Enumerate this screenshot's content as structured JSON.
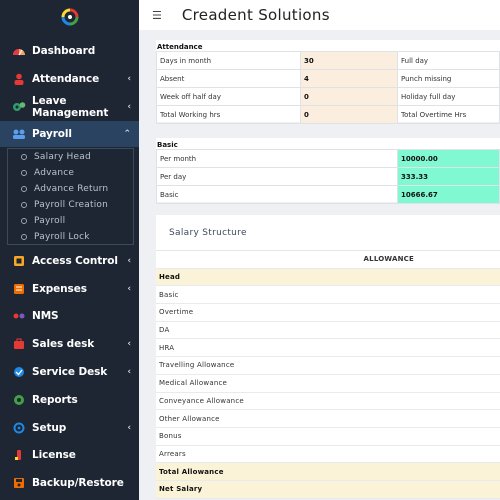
{
  "app": {
    "title": "Creadent Solutions"
  },
  "sidebar": {
    "items": [
      {
        "label": "Dashboard",
        "icon": "gauge-icon",
        "chevron": ""
      },
      {
        "label": "Attendance",
        "icon": "user-icon",
        "chevron": "‹"
      },
      {
        "label": "Leave Management",
        "icon": "cogs-icon",
        "chevron": "‹"
      },
      {
        "label": "Payroll",
        "icon": "payroll-icon",
        "chevron": "⌃"
      },
      {
        "label": "Access Control",
        "icon": "access-icon",
        "chevron": "‹"
      },
      {
        "label": "Expenses",
        "icon": "expenses-icon",
        "chevron": "‹"
      },
      {
        "label": "NMS",
        "icon": "nms-icon",
        "chevron": ""
      },
      {
        "label": "Sales desk",
        "icon": "sales-icon",
        "chevron": "‹"
      },
      {
        "label": "Service Desk",
        "icon": "service-icon",
        "chevron": "‹"
      },
      {
        "label": "Reports",
        "icon": "reports-icon",
        "chevron": ""
      },
      {
        "label": "Setup",
        "icon": "setup-icon",
        "chevron": "‹"
      },
      {
        "label": "License",
        "icon": "license-icon",
        "chevron": ""
      },
      {
        "label": "Backup/Restore",
        "icon": "backup-icon",
        "chevron": ""
      }
    ],
    "payroll_sub": [
      "Salary Head",
      "Advance",
      "Advance Return",
      "Payroll Creation",
      "Payroll",
      "Payroll Lock"
    ]
  },
  "attendance": {
    "label": "Attendance",
    "rows": [
      {
        "k1": "Days in month",
        "v1": "30",
        "k2": "Full day"
      },
      {
        "k1": "Absent",
        "v1": "4",
        "k2": "Punch missing"
      },
      {
        "k1": "Week off half day",
        "v1": "0",
        "k2": "Holiday full day"
      },
      {
        "k1": "Total Working hrs",
        "v1": "0",
        "k2": "Total Overtime Hrs"
      }
    ]
  },
  "basic": {
    "label": "Basic",
    "rows": [
      {
        "k": "Per month",
        "v": "10000.00"
      },
      {
        "k": "Per day",
        "v": "333.33"
      },
      {
        "k": "Basic",
        "v": "10666.67"
      }
    ]
  },
  "salary_structure": {
    "title": "Salary Structure",
    "allowance": "ALLOWANCE",
    "head": "Head",
    "rows": [
      "Basic",
      "Overtime",
      "DA",
      "HRA",
      "Travelling Allowance",
      "Medical Allowance",
      "Conveyance Allowance",
      "Other Allowance",
      "Bonus",
      "Arrears"
    ],
    "total": "Total Allowance",
    "net": "Net Salary"
  },
  "colors": {
    "sidebar": "#1d2632",
    "active": "#2a4360",
    "beige": "#fbeede",
    "green": "#80f8d2",
    "highlight": "#fbf3d8"
  }
}
